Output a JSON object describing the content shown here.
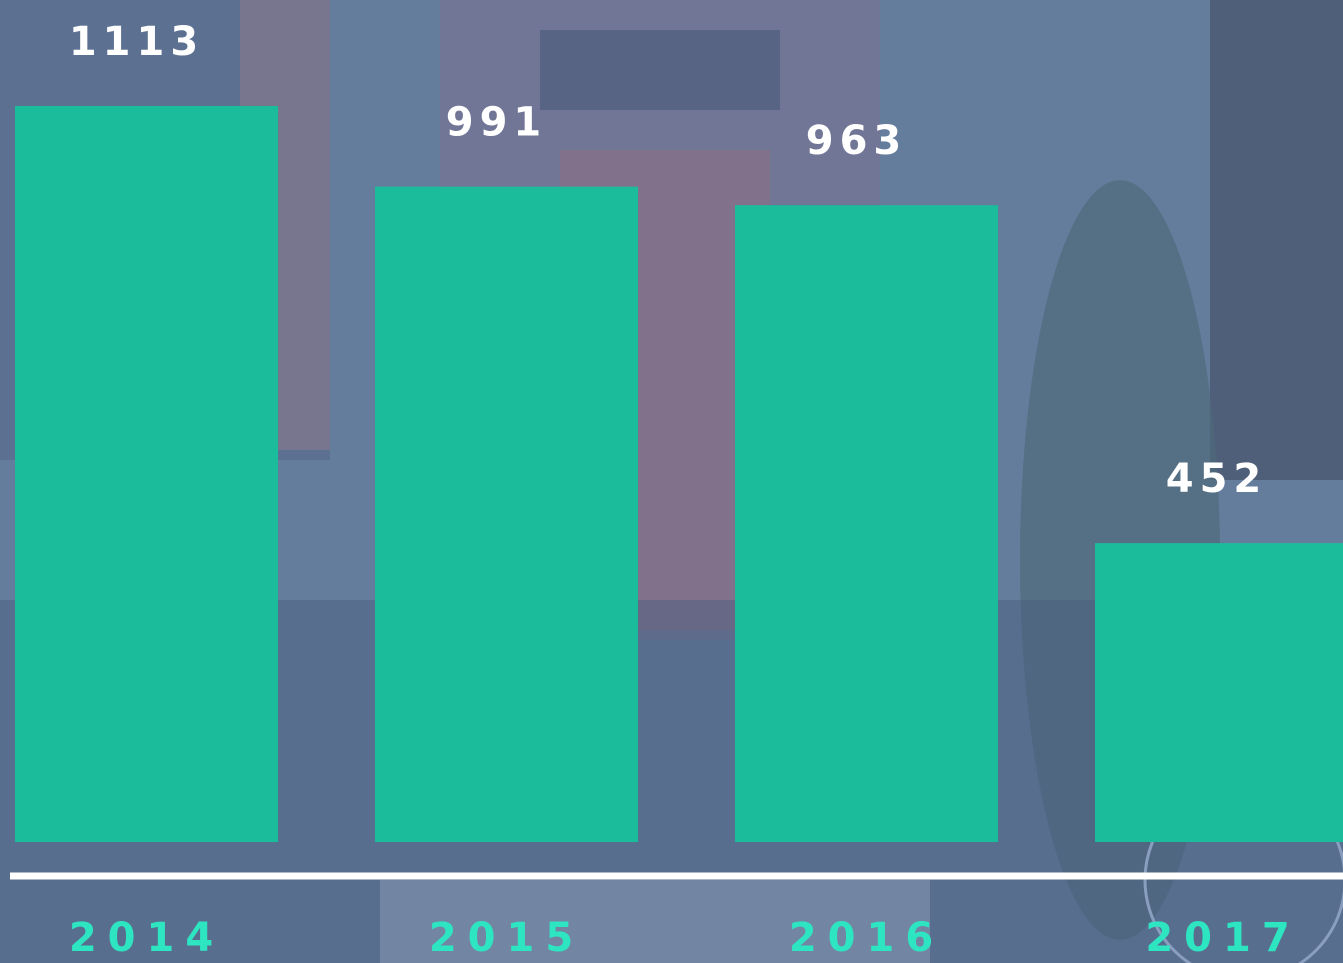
{
  "chart_data": {
    "type": "bar",
    "categories": [
      "2014",
      "2015",
      "2016",
      "2017"
    ],
    "values": [
      1113,
      991,
      963,
      452
    ],
    "color": "#1abc9c"
  }
}
